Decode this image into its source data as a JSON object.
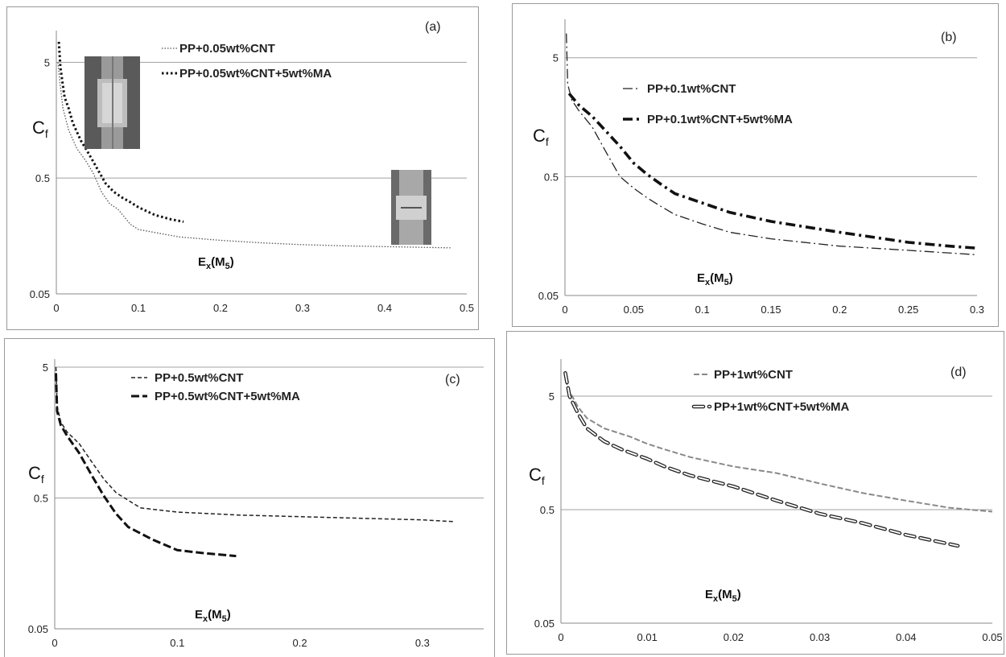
{
  "chart_data": [
    {
      "type": "line",
      "panel_label": "(a)",
      "ylabel": "C",
      "ylabel_sub": "f",
      "xlabel": "E",
      "xlabel_sub": "x",
      "xlabel_paren": "(M",
      "xlabel_paren_sub": "5",
      "xlabel_close": ")",
      "y_scale": "log",
      "xlim": [
        0,
        0.5
      ],
      "ylim": [
        0.05,
        8
      ],
      "x_ticks": [
        "0",
        "0.1",
        "0.2",
        "0.3",
        "0.4",
        "0.5"
      ],
      "x_tick_values": [
        0,
        0.1,
        0.2,
        0.3,
        0.4,
        0.5
      ],
      "y_ticks": [
        "0.05",
        "0.5",
        "5"
      ],
      "y_tick_values": [
        0.05,
        0.5,
        5
      ],
      "legend_position": "top-center",
      "has_insets": true,
      "series": [
        {
          "name": "PP+0.05wt%CNT",
          "style": "dotted-thin",
          "x": [
            0.002,
            0.004,
            0.008,
            0.015,
            0.025,
            0.035,
            0.045,
            0.055,
            0.065,
            0.075,
            0.09,
            0.1,
            0.15,
            0.2,
            0.25,
            0.3,
            0.35,
            0.4,
            0.45,
            0.48
          ],
          "y": [
            5,
            3.5,
            2,
            1.3,
            0.9,
            0.72,
            0.55,
            0.38,
            0.3,
            0.27,
            0.2,
            0.18,
            0.155,
            0.145,
            0.138,
            0.133,
            0.13,
            0.128,
            0.126,
            0.125
          ]
        },
        {
          "name": "PP+0.05wt%CNT+5wt%MA",
          "style": "dotted-thick",
          "x": [
            0.003,
            0.005,
            0.01,
            0.015,
            0.02,
            0.03,
            0.04,
            0.05,
            0.06,
            0.07,
            0.08,
            0.09,
            0.1,
            0.12,
            0.14,
            0.155
          ],
          "y": [
            7.5,
            4.5,
            2.5,
            2,
            1.5,
            1.05,
            0.8,
            0.6,
            0.45,
            0.38,
            0.34,
            0.31,
            0.28,
            0.24,
            0.22,
            0.21
          ]
        }
      ]
    },
    {
      "type": "line",
      "panel_label": "(b)",
      "ylabel": "C",
      "ylabel_sub": "f",
      "xlabel": "E",
      "xlabel_sub": "x",
      "xlabel_paren": "(M",
      "xlabel_paren_sub": "5",
      "xlabel_close": ")",
      "y_scale": "log",
      "xlim": [
        0,
        0.3
      ],
      "ylim": [
        0.05,
        9
      ],
      "x_ticks": [
        "0",
        "0.05",
        "0.1",
        "0.15",
        "0.2",
        "0.25",
        "0.3"
      ],
      "x_tick_values": [
        0,
        0.05,
        0.1,
        0.15,
        0.2,
        0.25,
        0.3
      ],
      "y_ticks": [
        "0.05",
        "0.5",
        "5"
      ],
      "y_tick_values": [
        0.05,
        0.5,
        5
      ],
      "legend_position": "top-center",
      "series": [
        {
          "name": "PP+0.1wt%CNT",
          "style": "dashdot-thin",
          "x": [
            0.001,
            0.002,
            0.005,
            0.01,
            0.02,
            0.03,
            0.04,
            0.05,
            0.06,
            0.07,
            0.08,
            0.1,
            0.12,
            0.15,
            0.2,
            0.25,
            0.3
          ],
          "y": [
            8,
            3,
            2.2,
            1.8,
            1.3,
            0.8,
            0.5,
            0.4,
            0.33,
            0.28,
            0.24,
            0.2,
            0.17,
            0.15,
            0.13,
            0.12,
            0.11
          ]
        },
        {
          "name": "PP+0.1wt%CNT+5wt%MA",
          "style": "dashdot-thick",
          "x": [
            0.003,
            0.01,
            0.02,
            0.03,
            0.04,
            0.05,
            0.06,
            0.07,
            0.08,
            0.1,
            0.12,
            0.15,
            0.2,
            0.25,
            0.28,
            0.3
          ],
          "y": [
            2.5,
            2,
            1.6,
            1.2,
            0.9,
            0.65,
            0.52,
            0.43,
            0.36,
            0.3,
            0.25,
            0.21,
            0.17,
            0.14,
            0.13,
            0.125
          ]
        }
      ]
    },
    {
      "type": "line",
      "panel_label": "(c)",
      "ylabel": "C",
      "ylabel_sub": "f",
      "xlabel": "E",
      "xlabel_sub": "x",
      "xlabel_paren": "(M",
      "xlabel_paren_sub": "5",
      "xlabel_close": ")",
      "y_scale": "log",
      "xlim": [
        0,
        0.35
      ],
      "ylim": [
        0.05,
        5
      ],
      "x_ticks": [
        "0",
        "0.1",
        "0.2",
        "0.3"
      ],
      "x_tick_values": [
        0,
        0.1,
        0.2,
        0.3
      ],
      "y_ticks": [
        "0.05",
        "0.5",
        "5"
      ],
      "y_tick_values": [
        0.05,
        0.5,
        5
      ],
      "legend_position": "top-center",
      "series": [
        {
          "name": "PP+0.5wt%CNT",
          "style": "dashed-thin",
          "x": [
            0.001,
            0.002,
            0.005,
            0.01,
            0.02,
            0.03,
            0.04,
            0.05,
            0.06,
            0.07,
            0.1,
            0.15,
            0.2,
            0.25,
            0.3,
            0.325
          ],
          "y": [
            5,
            2.5,
            1.9,
            1.6,
            1.3,
            0.95,
            0.7,
            0.55,
            0.48,
            0.42,
            0.39,
            0.37,
            0.36,
            0.35,
            0.34,
            0.33
          ]
        },
        {
          "name": "PP+0.5wt%CNT+5wt%MA",
          "style": "dashed-thick",
          "x": [
            0.001,
            0.002,
            0.005,
            0.01,
            0.02,
            0.03,
            0.04,
            0.05,
            0.06,
            0.08,
            0.1,
            0.12,
            0.148
          ],
          "y": [
            4.5,
            2.3,
            1.8,
            1.5,
            1.1,
            0.75,
            0.52,
            0.38,
            0.3,
            0.24,
            0.2,
            0.19,
            0.18
          ]
        }
      ]
    },
    {
      "type": "line",
      "panel_label": "(d)",
      "ylabel": "C",
      "ylabel_sub": "f",
      "xlabel": "E",
      "xlabel_sub": "x",
      "xlabel_paren": "(M",
      "xlabel_paren_sub": "5",
      "xlabel_close": ")",
      "y_scale": "log",
      "xlim": [
        0,
        0.05
      ],
      "ylim": [
        0.05,
        9
      ],
      "x_ticks": [
        "0",
        "0.01",
        "0.02",
        "0.03",
        "0.04",
        "0.05"
      ],
      "x_tick_values": [
        0,
        0.01,
        0.02,
        0.03,
        0.04,
        0.05
      ],
      "y_ticks": [
        "0.05",
        "0.5",
        "5"
      ],
      "y_tick_values": [
        0.05,
        0.5,
        5
      ],
      "legend_position": "top-center",
      "series": [
        {
          "name": "PP+1wt%CNT",
          "style": "dashed-gray",
          "x": [
            0.0005,
            0.001,
            0.002,
            0.003,
            0.005,
            0.008,
            0.01,
            0.012,
            0.015,
            0.02,
            0.025,
            0.03,
            0.035,
            0.04,
            0.045,
            0.05
          ],
          "y": [
            7,
            5.5,
            4,
            3.2,
            2.6,
            2.2,
            1.9,
            1.7,
            1.45,
            1.2,
            1.05,
            0.85,
            0.7,
            0.6,
            0.52,
            0.48
          ]
        },
        {
          "name": "PP+1wt%CNT+5wt%MA",
          "style": "capsule",
          "x": [
            0.0005,
            0.001,
            0.002,
            0.003,
            0.005,
            0.007,
            0.01,
            0.012,
            0.015,
            0.02,
            0.025,
            0.03,
            0.035,
            0.04,
            0.046
          ],
          "y": [
            8,
            5,
            3.5,
            2.6,
            2,
            1.7,
            1.4,
            1.2,
            1,
            0.8,
            0.6,
            0.46,
            0.38,
            0.3,
            0.24
          ]
        }
      ]
    }
  ]
}
